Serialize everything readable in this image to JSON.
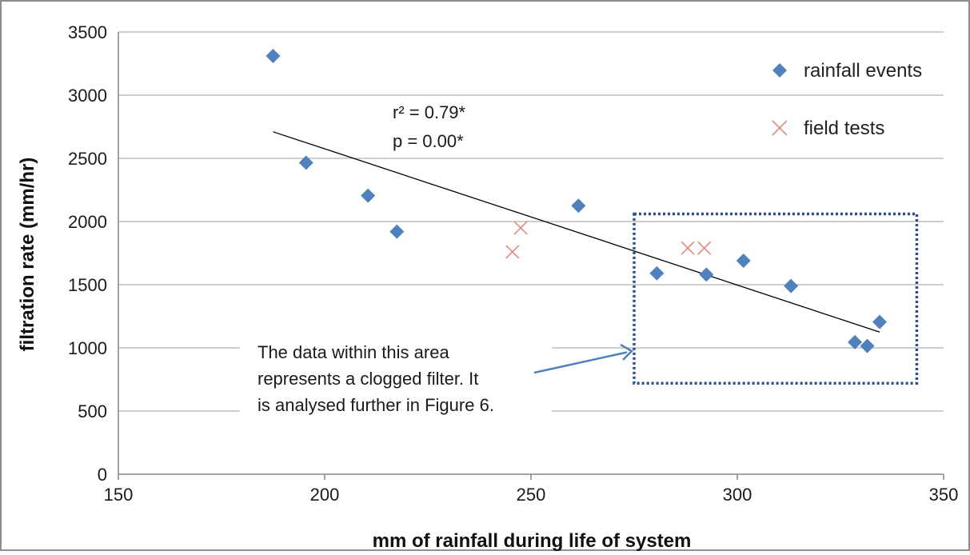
{
  "chart_data": {
    "type": "scatter",
    "xlabel": "mm of rainfall during life of system",
    "ylabel": "filtration rate (mm/hr)",
    "xlim": [
      150,
      350
    ],
    "ylim": [
      0,
      3500
    ],
    "xticks": [
      150,
      200,
      250,
      300,
      350
    ],
    "yticks": [
      0,
      500,
      1000,
      1500,
      2000,
      2500,
      3000,
      3500
    ],
    "grid": "horizontal",
    "legend_position": "top-right",
    "series": [
      {
        "name": "rainfall events",
        "marker": "diamond",
        "color": "#4f81bd",
        "points": [
          [
            187.5,
            3310
          ],
          [
            195.5,
            2465
          ],
          [
            210.5,
            2205
          ],
          [
            217.5,
            1920
          ],
          [
            261.5,
            2125
          ],
          [
            280.5,
            1590
          ],
          [
            292.5,
            1580
          ],
          [
            301.5,
            1690
          ],
          [
            313,
            1490
          ],
          [
            328.5,
            1045
          ],
          [
            331.5,
            1015
          ],
          [
            334.5,
            1205
          ]
        ]
      },
      {
        "name": "field tests",
        "marker": "x",
        "color": "#e0897e",
        "points": [
          [
            245.5,
            1760
          ],
          [
            247.5,
            1950
          ],
          [
            288,
            1790
          ],
          [
            292,
            1790
          ]
        ]
      }
    ],
    "trendline": {
      "x1": 187.5,
      "y1": 2710,
      "x2": 334.5,
      "y2": 1125,
      "color": "#000000"
    },
    "annotations": {
      "stats_line1": "r² = 0.79*",
      "stats_line2": "p = 0.00*",
      "note_lines": [
        "The data within this area",
        "represents a clogged filter. It",
        "is analysed further in Figure 6."
      ],
      "box": {
        "x_min": 275,
        "x_max": 343.5,
        "y_min": 720,
        "y_max": 2060,
        "color": "#2e4e8e"
      },
      "arrow": {
        "color": "#4f81bd"
      }
    }
  }
}
